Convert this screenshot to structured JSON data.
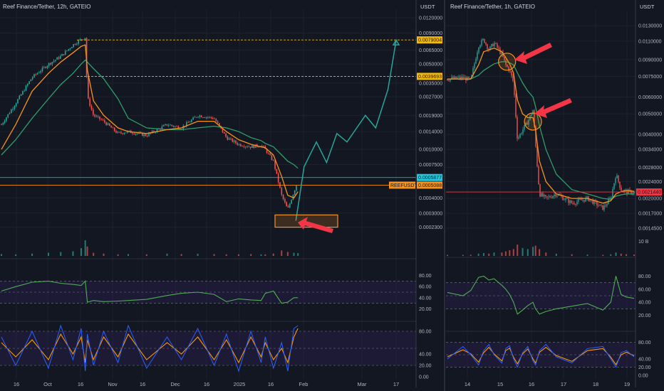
{
  "chart_data": [
    {
      "type": "candlestick",
      "title": "Reef Finance/Tether, 12h, GATEIO",
      "unit_label": "USDT",
      "y_scale": "log",
      "ylim": [
        0.0002,
        0.0125
      ],
      "y_ticks": [
        "0.0120000",
        "0.0090000",
        "0.0065000",
        "0.0050000",
        "0.0035000",
        "0.0027000",
        "0.0019000",
        "0.0014000",
        "0.0010000",
        "0.0007500",
        "0.0004000",
        "0.0003000",
        "0.0002300"
      ],
      "x_ticks": [
        "16",
        "Oct",
        "16",
        "Nov",
        "16",
        "Dec",
        "16",
        "2025",
        "16",
        "Feb",
        "Mar",
        "17"
      ],
      "price_path": {
        "x": [
          "Sep 05",
          "Sep 12",
          "Sep 20",
          "Sep 28",
          "Oct 04",
          "Oct 10",
          "Oct 14",
          "Oct 16",
          "Oct 17",
          "Oct 20",
          "Oct 25",
          "Nov 01",
          "Nov 06",
          "Nov 15",
          "Nov 25",
          "Dec 02",
          "Dec 10",
          "Dec 18",
          "Dec 24",
          "Dec 30",
          "Jan 05",
          "Jan 10",
          "Jan 12",
          "Jan 16",
          "Jan 20",
          "Jan 23",
          "Jan 26",
          "Jan 28"
        ],
        "close": [
          0.0016,
          0.0024,
          0.0039,
          0.005,
          0.0058,
          0.0072,
          0.008,
          0.0083,
          0.0027,
          0.0019,
          0.0017,
          0.00135,
          0.0014,
          0.0013,
          0.0016,
          0.0015,
          0.0019,
          0.0018,
          0.00125,
          0.0011,
          0.00105,
          0.00108,
          0.001,
          0.0008,
          0.00042,
          0.00032,
          0.00045,
          0.00055
        ]
      },
      "ma_fast": [
        0.001,
        0.0016,
        0.003,
        0.0042,
        0.0052,
        0.0062,
        0.007,
        0.0072,
        0.0045,
        0.0025,
        0.0019,
        0.0015,
        0.0014,
        0.00135,
        0.00145,
        0.0015,
        0.0017,
        0.0017,
        0.0014,
        0.0012,
        0.0011,
        0.00105,
        0.00103,
        0.0009,
        0.0006,
        0.00042,
        0.0004,
        0.00045
      ],
      "ma_slow": [
        0.0009,
        0.0012,
        0.0018,
        0.0026,
        0.0034,
        0.0042,
        0.005,
        0.0054,
        0.0052,
        0.0046,
        0.0038,
        0.0026,
        0.0018,
        0.0015,
        0.00145,
        0.00145,
        0.0015,
        0.00155,
        0.0015,
        0.0014,
        0.00125,
        0.00118,
        0.00112,
        0.00105,
        0.0009,
        0.0008,
        0.00075,
        0.0007
      ],
      "volume_bars": [
        0.12,
        0.1,
        0.15,
        0.2,
        0.25,
        0.3,
        0.5,
        1.0,
        0.6,
        0.2,
        0.15,
        0.1,
        0.12,
        0.1,
        0.15,
        0.12,
        0.14,
        0.12,
        0.1,
        0.1,
        0.12,
        0.1,
        0.1,
        0.15,
        0.35,
        0.25,
        0.2,
        0.18
      ],
      "price_tags": [
        {
          "value": 0.0079004,
          "label": "0.0079004",
          "color": "#f0b90b"
        },
        {
          "value": 0.0039693,
          "label": "0.0039693",
          "color": "#f0b90b"
        },
        {
          "value": 0.0005877,
          "label": "0.0005877",
          "color": "#26c6da"
        },
        {
          "value": 0.0005088,
          "label": "0.0005088",
          "color": "#f7931a",
          "symbol": "REEFUSDT"
        }
      ],
      "projection": {
        "x": [
          "Jan 27",
          "Jan 31",
          "Feb 06",
          "Feb 11",
          "Feb 16",
          "Feb 21",
          "Mar 02",
          "Mar 07",
          "Mar 13",
          "Mar 17"
        ],
        "y": [
          0.00026,
          0.00072,
          0.00115,
          0.00078,
          0.00135,
          0.00115,
          0.0019,
          0.0015,
          0.0031,
          0.0078
        ]
      },
      "support_box": [
        0.00023,
        0.00029
      ],
      "rsi": {
        "ylim": [
          0,
          100
        ],
        "y_ticks": [
          "80.00",
          "60.00",
          "40.00",
          "20.00"
        ],
        "values": [
          52,
          60,
          68,
          70,
          66,
          64,
          62,
          70,
          32,
          35,
          33,
          34,
          35,
          37,
          44,
          48,
          50,
          46,
          33,
          38,
          36,
          35,
          48,
          52,
          30,
          32,
          40,
          40
        ]
      },
      "stoch": {
        "ylim": [
          0,
          100
        ],
        "y_ticks": [
          "80.00",
          "40.00",
          "20.00",
          "0.00"
        ],
        "k": [
          70,
          20,
          80,
          15,
          90,
          30,
          85,
          10,
          75,
          20,
          80,
          25,
          90,
          15,
          70,
          30,
          85,
          20,
          75,
          10,
          80,
          25,
          70,
          15,
          60,
          10,
          85,
          90
        ],
        "d": [
          60,
          35,
          65,
          30,
          75,
          40,
          70,
          25,
          65,
          30,
          70,
          35,
          75,
          30,
          60,
          40,
          70,
          30,
          65,
          25,
          70,
          35,
          60,
          30,
          50,
          25,
          70,
          85
        ]
      }
    },
    {
      "type": "candlestick",
      "title": "Reef Finance/Tether, 1h, GATEIO",
      "unit_label": "USDT",
      "y_scale": "log",
      "ylim": [
        0.0013,
        0.0145
      ],
      "y_ticks": [
        "0.0130000",
        "0.0110000",
        "0.0090000",
        "0.0075000",
        "0.0060000",
        "0.0050000",
        "0.0040000",
        "0.0034000",
        "0.0028000",
        "0.0024000",
        "0.0020000",
        "0.0017000",
        "0.0014500"
      ],
      "x_ticks": [
        "14",
        "15",
        "16",
        "17",
        "18",
        "19"
      ],
      "price_path": {
        "x": [
          "Oct 13 06h",
          "Oct 13 18h",
          "Oct 14 00h",
          "Oct 14 06h",
          "Oct 14 10h",
          "Oct 14 14h",
          "Oct 14 18h",
          "Oct 15 00h",
          "Oct 15 03h",
          "Oct 15 06h",
          "Oct 15 09h",
          "Oct 15 12h",
          "Oct 15 16h",
          "Oct 15 20h",
          "Oct 16 00h",
          "Oct 16 02h",
          "Oct 16 05h",
          "Oct 16 10h",
          "Oct 16 18h",
          "Oct 17 06h",
          "Oct 17 18h",
          "Oct 18 06h",
          "Oct 18 12h",
          "Oct 18 16h",
          "Oct 18 20h",
          "Oct 19 00h",
          "Oct 19 06h"
        ],
        "close": [
          0.0073,
          0.0074,
          0.0072,
          0.0105,
          0.0112,
          0.01,
          0.0108,
          0.0095,
          0.0085,
          0.008,
          0.007,
          0.0038,
          0.0042,
          0.0046,
          0.0052,
          0.0036,
          0.0021,
          0.002,
          0.0021,
          0.0019,
          0.002,
          0.0018,
          0.002,
          0.0026,
          0.0022,
          0.00215,
          0.00214
        ]
      },
      "ma_fast": [
        0.0073,
        0.0073,
        0.0073,
        0.0085,
        0.0098,
        0.01,
        0.0102,
        0.0098,
        0.0092,
        0.0086,
        0.0078,
        0.0058,
        0.005,
        0.0048,
        0.0048,
        0.0042,
        0.003,
        0.0024,
        0.0021,
        0.002,
        0.002,
        0.0019,
        0.00195,
        0.0021,
        0.00215,
        0.00218,
        0.00216
      ],
      "ma_slow": [
        0.0073,
        0.0073,
        0.0073,
        0.0076,
        0.008,
        0.0083,
        0.0086,
        0.0088,
        0.0088,
        0.0087,
        0.0085,
        0.0078,
        0.007,
        0.0064,
        0.006,
        0.0054,
        0.0044,
        0.0034,
        0.0026,
        0.0022,
        0.0021,
        0.002,
        0.00198,
        0.00205,
        0.00208,
        0.0021,
        0.0021
      ],
      "volume_bars": [
        0.1,
        0.1,
        0.1,
        0.2,
        0.25,
        0.2,
        0.3,
        0.3,
        0.4,
        0.5,
        0.6,
        1.0,
        0.7,
        0.6,
        0.8,
        0.9,
        0.6,
        0.3,
        0.2,
        0.15,
        0.12,
        0.1,
        0.15,
        0.3,
        0.2,
        0.15,
        0.12
      ],
      "volume_label": "10 B",
      "price_tags": [
        {
          "value": 0.002144,
          "label": "0.0021440",
          "color": "#f23645"
        }
      ],
      "circles": [
        {
          "x": "Oct 15 04h",
          "y": 0.0088
        },
        {
          "x": "Oct 16 00h",
          "y": 0.0046
        }
      ],
      "rsi": {
        "ylim": [
          0,
          100
        ],
        "y_ticks": [
          "80.00",
          "60.00",
          "40.00",
          "20.00"
        ],
        "values": [
          55,
          50,
          58,
          78,
          80,
          74,
          76,
          66,
          60,
          52,
          40,
          22,
          28,
          35,
          40,
          30,
          22,
          26,
          30,
          34,
          38,
          28,
          40,
          80,
          52,
          48,
          46
        ]
      },
      "stoch": {
        "ylim": [
          0,
          100
        ],
        "y_ticks": [
          "80.00",
          "40.00",
          "20.00",
          "0.00"
        ],
        "k": [
          40,
          70,
          50,
          25,
          60,
          75,
          50,
          30,
          65,
          72,
          40,
          20,
          55,
          70,
          35,
          25,
          60,
          75,
          45,
          30,
          65,
          70,
          40,
          20,
          55,
          60,
          45
        ],
        "d": [
          45,
          62,
          52,
          32,
          55,
          68,
          52,
          35,
          60,
          66,
          44,
          28,
          52,
          64,
          40,
          30,
          56,
          68,
          48,
          34,
          60,
          65,
          44,
          26,
          50,
          56,
          48
        ]
      }
    }
  ],
  "palette": {
    "bg": "#131722",
    "up": "#26a69a",
    "down": "#ef5350",
    "ma_fast": "#f7931a",
    "ma_slow": "#2e9e6a",
    "rsi": "#4caf50",
    "stoch_k": "#2962ff",
    "stoch_d": "#ff9800",
    "projection": "#26a69a",
    "arrow": "#f23645",
    "box": "#f7931a",
    "band": "#2a2050"
  }
}
